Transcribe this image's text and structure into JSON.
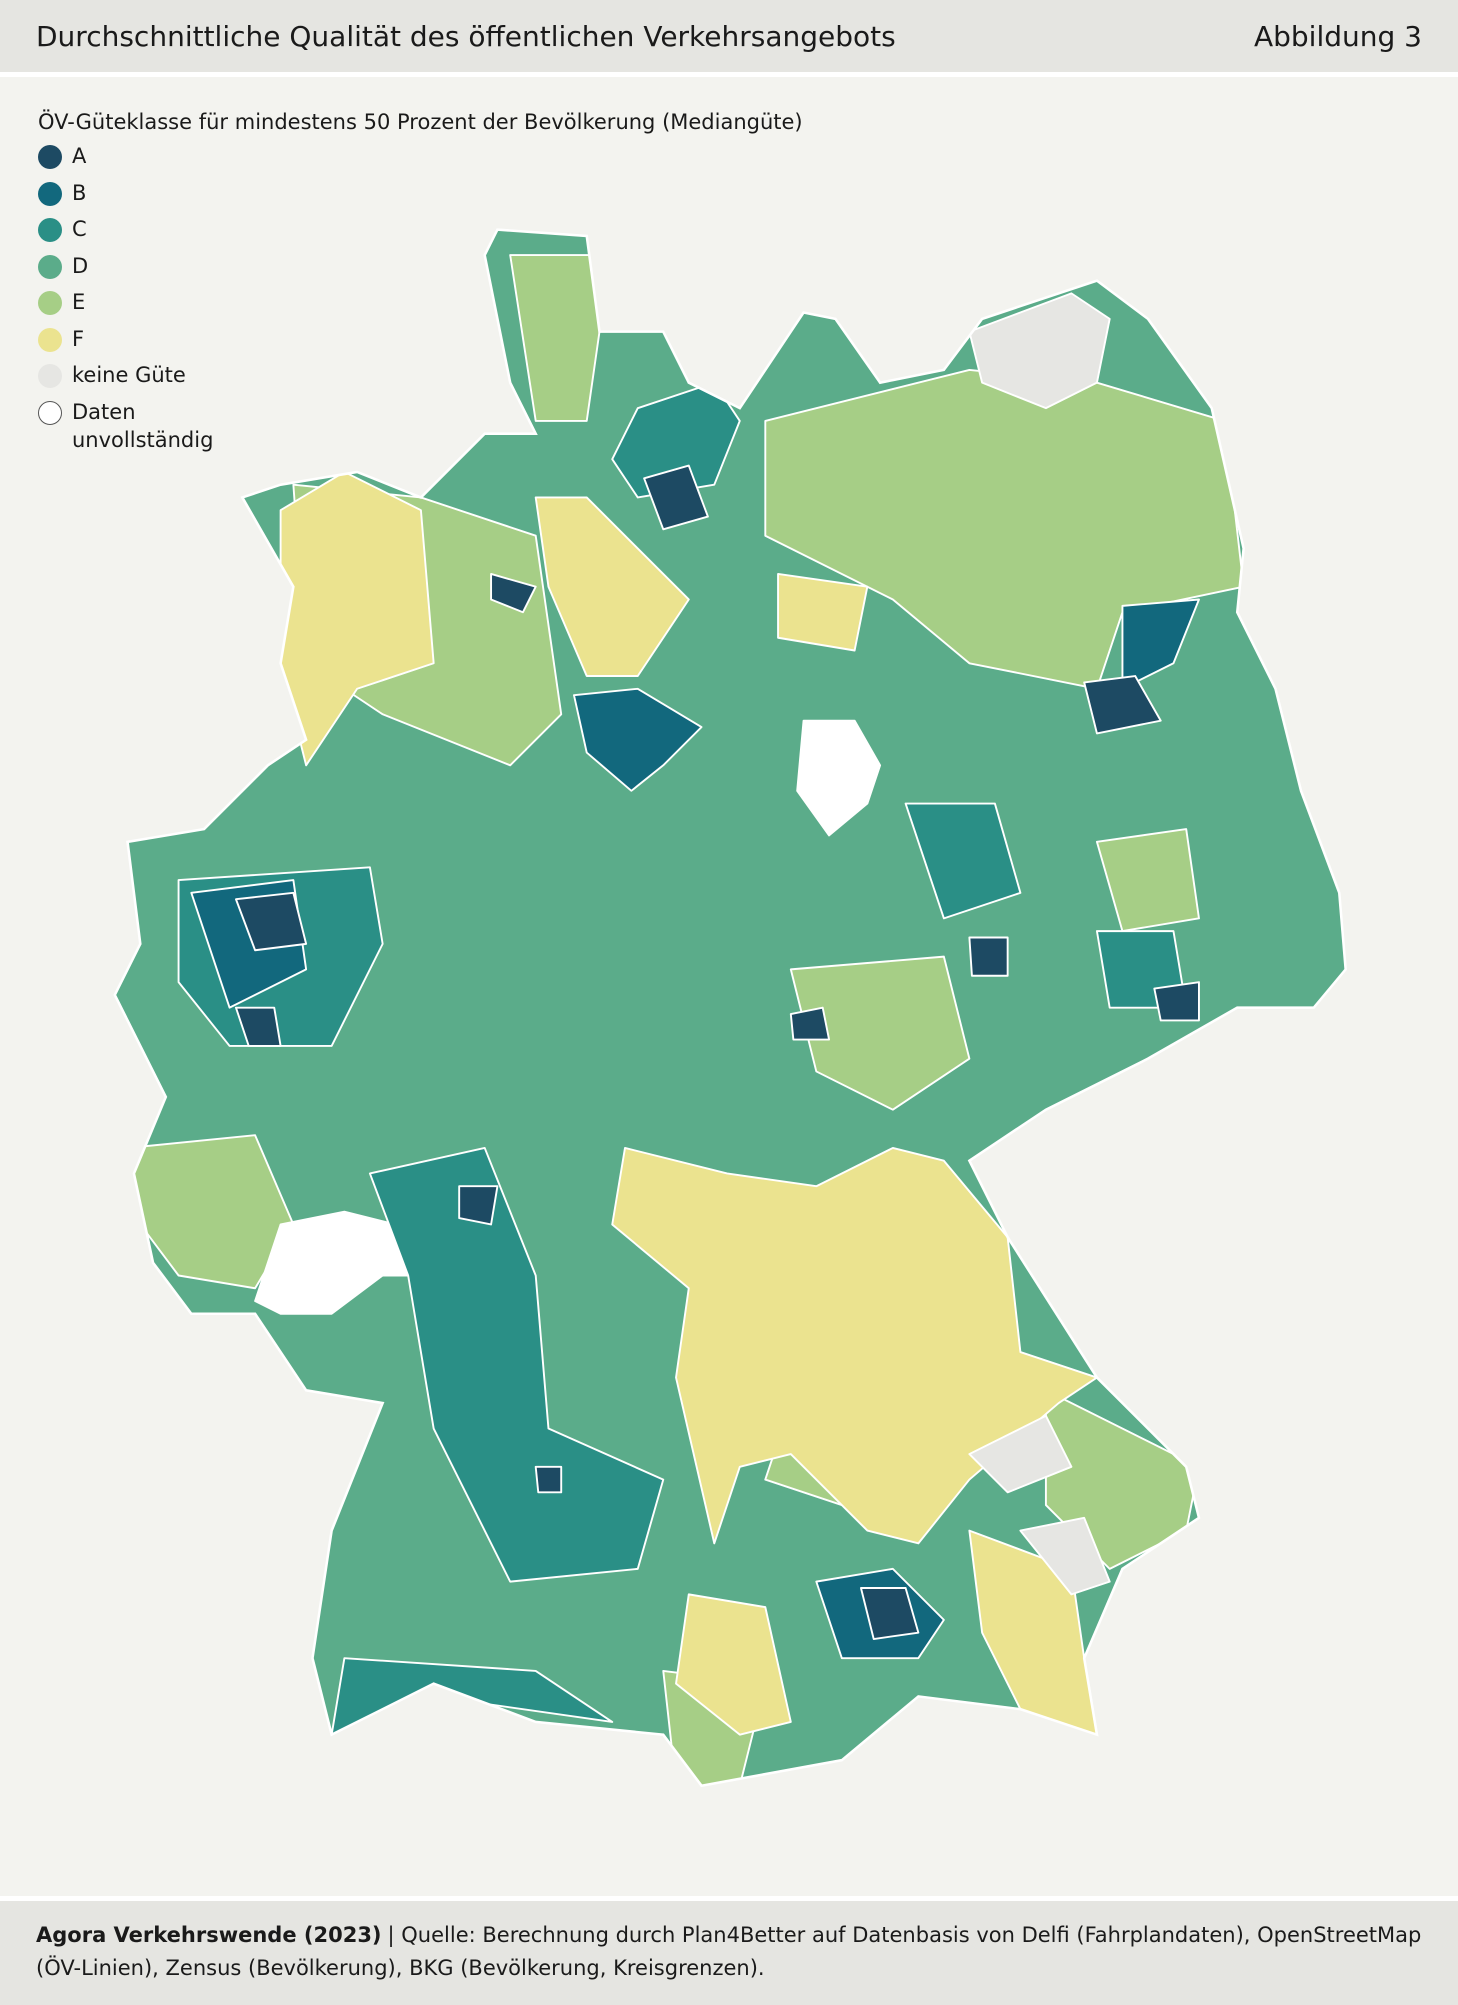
{
  "header": {
    "title": "Durchschnittliche Qualität des öffentlichen Verkehrsangebots",
    "figure": "Abbildung 3"
  },
  "legend": {
    "title": "ÖV-Güteklasse für mindestens 50 Prozent der Bevölkerung (Mediangüte)",
    "items": [
      {
        "label": "A",
        "color": "#1d4a63"
      },
      {
        "label": "B",
        "color": "#12687d"
      },
      {
        "label": "C",
        "color": "#2a8f86"
      },
      {
        "label": "D",
        "color": "#5bac8a"
      },
      {
        "label": "E",
        "color": "#a6ce86"
      },
      {
        "label": "F",
        "color": "#ebe38f"
      },
      {
        "label": "keine Güte",
        "color": "#e6e6e3"
      },
      {
        "label": "Daten unvollständig",
        "color": "#ffffff"
      }
    ]
  },
  "footer": {
    "source_bold": "Agora Verkehrswende (2023)",
    "source_text": "| Quelle: Berechnung durch Plan4Better auf Datenbasis von Delfi (Fahrplandaten), OpenStreetMap (ÖV-Linien), Zensus (Bevölkerung), BKG (Bevölkerung, Kreisgrenzen)."
  }
}
